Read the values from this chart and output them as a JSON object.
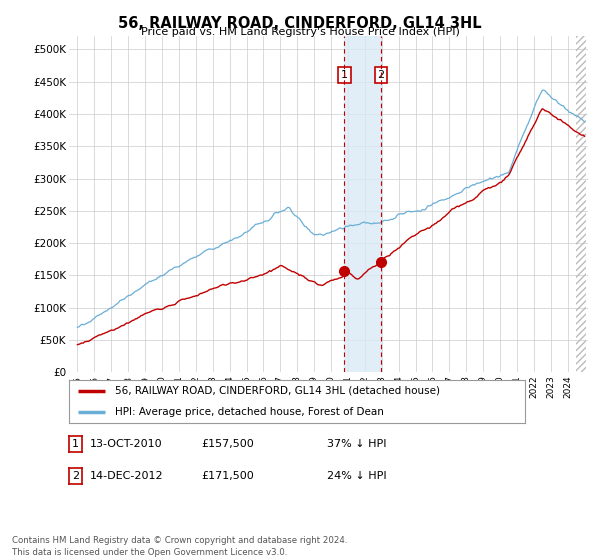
{
  "title": "56, RAILWAY ROAD, CINDERFORD, GL14 3HL",
  "subtitle": "Price paid vs. HM Land Registry's House Price Index (HPI)",
  "legend_line1": "56, RAILWAY ROAD, CINDERFORD, GL14 3HL (detached house)",
  "legend_line2": "HPI: Average price, detached house, Forest of Dean",
  "sale1_date": "13-OCT-2010",
  "sale1_price": 157500,
  "sale1_label": "37% ↓ HPI",
  "sale2_date": "14-DEC-2012",
  "sale2_price": 171500,
  "sale2_label": "24% ↓ HPI",
  "footer": "Contains HM Land Registry data © Crown copyright and database right 2024.\nThis data is licensed under the Open Government Licence v3.0.",
  "hpi_color": "#6aaed6",
  "sale_color": "#c00000",
  "background_color": "#ffffff",
  "ylim": [
    0,
    520000
  ],
  "sale1_x": 2010.79,
  "sale2_x": 2012.96,
  "shaded_color": "#daeaf5"
}
